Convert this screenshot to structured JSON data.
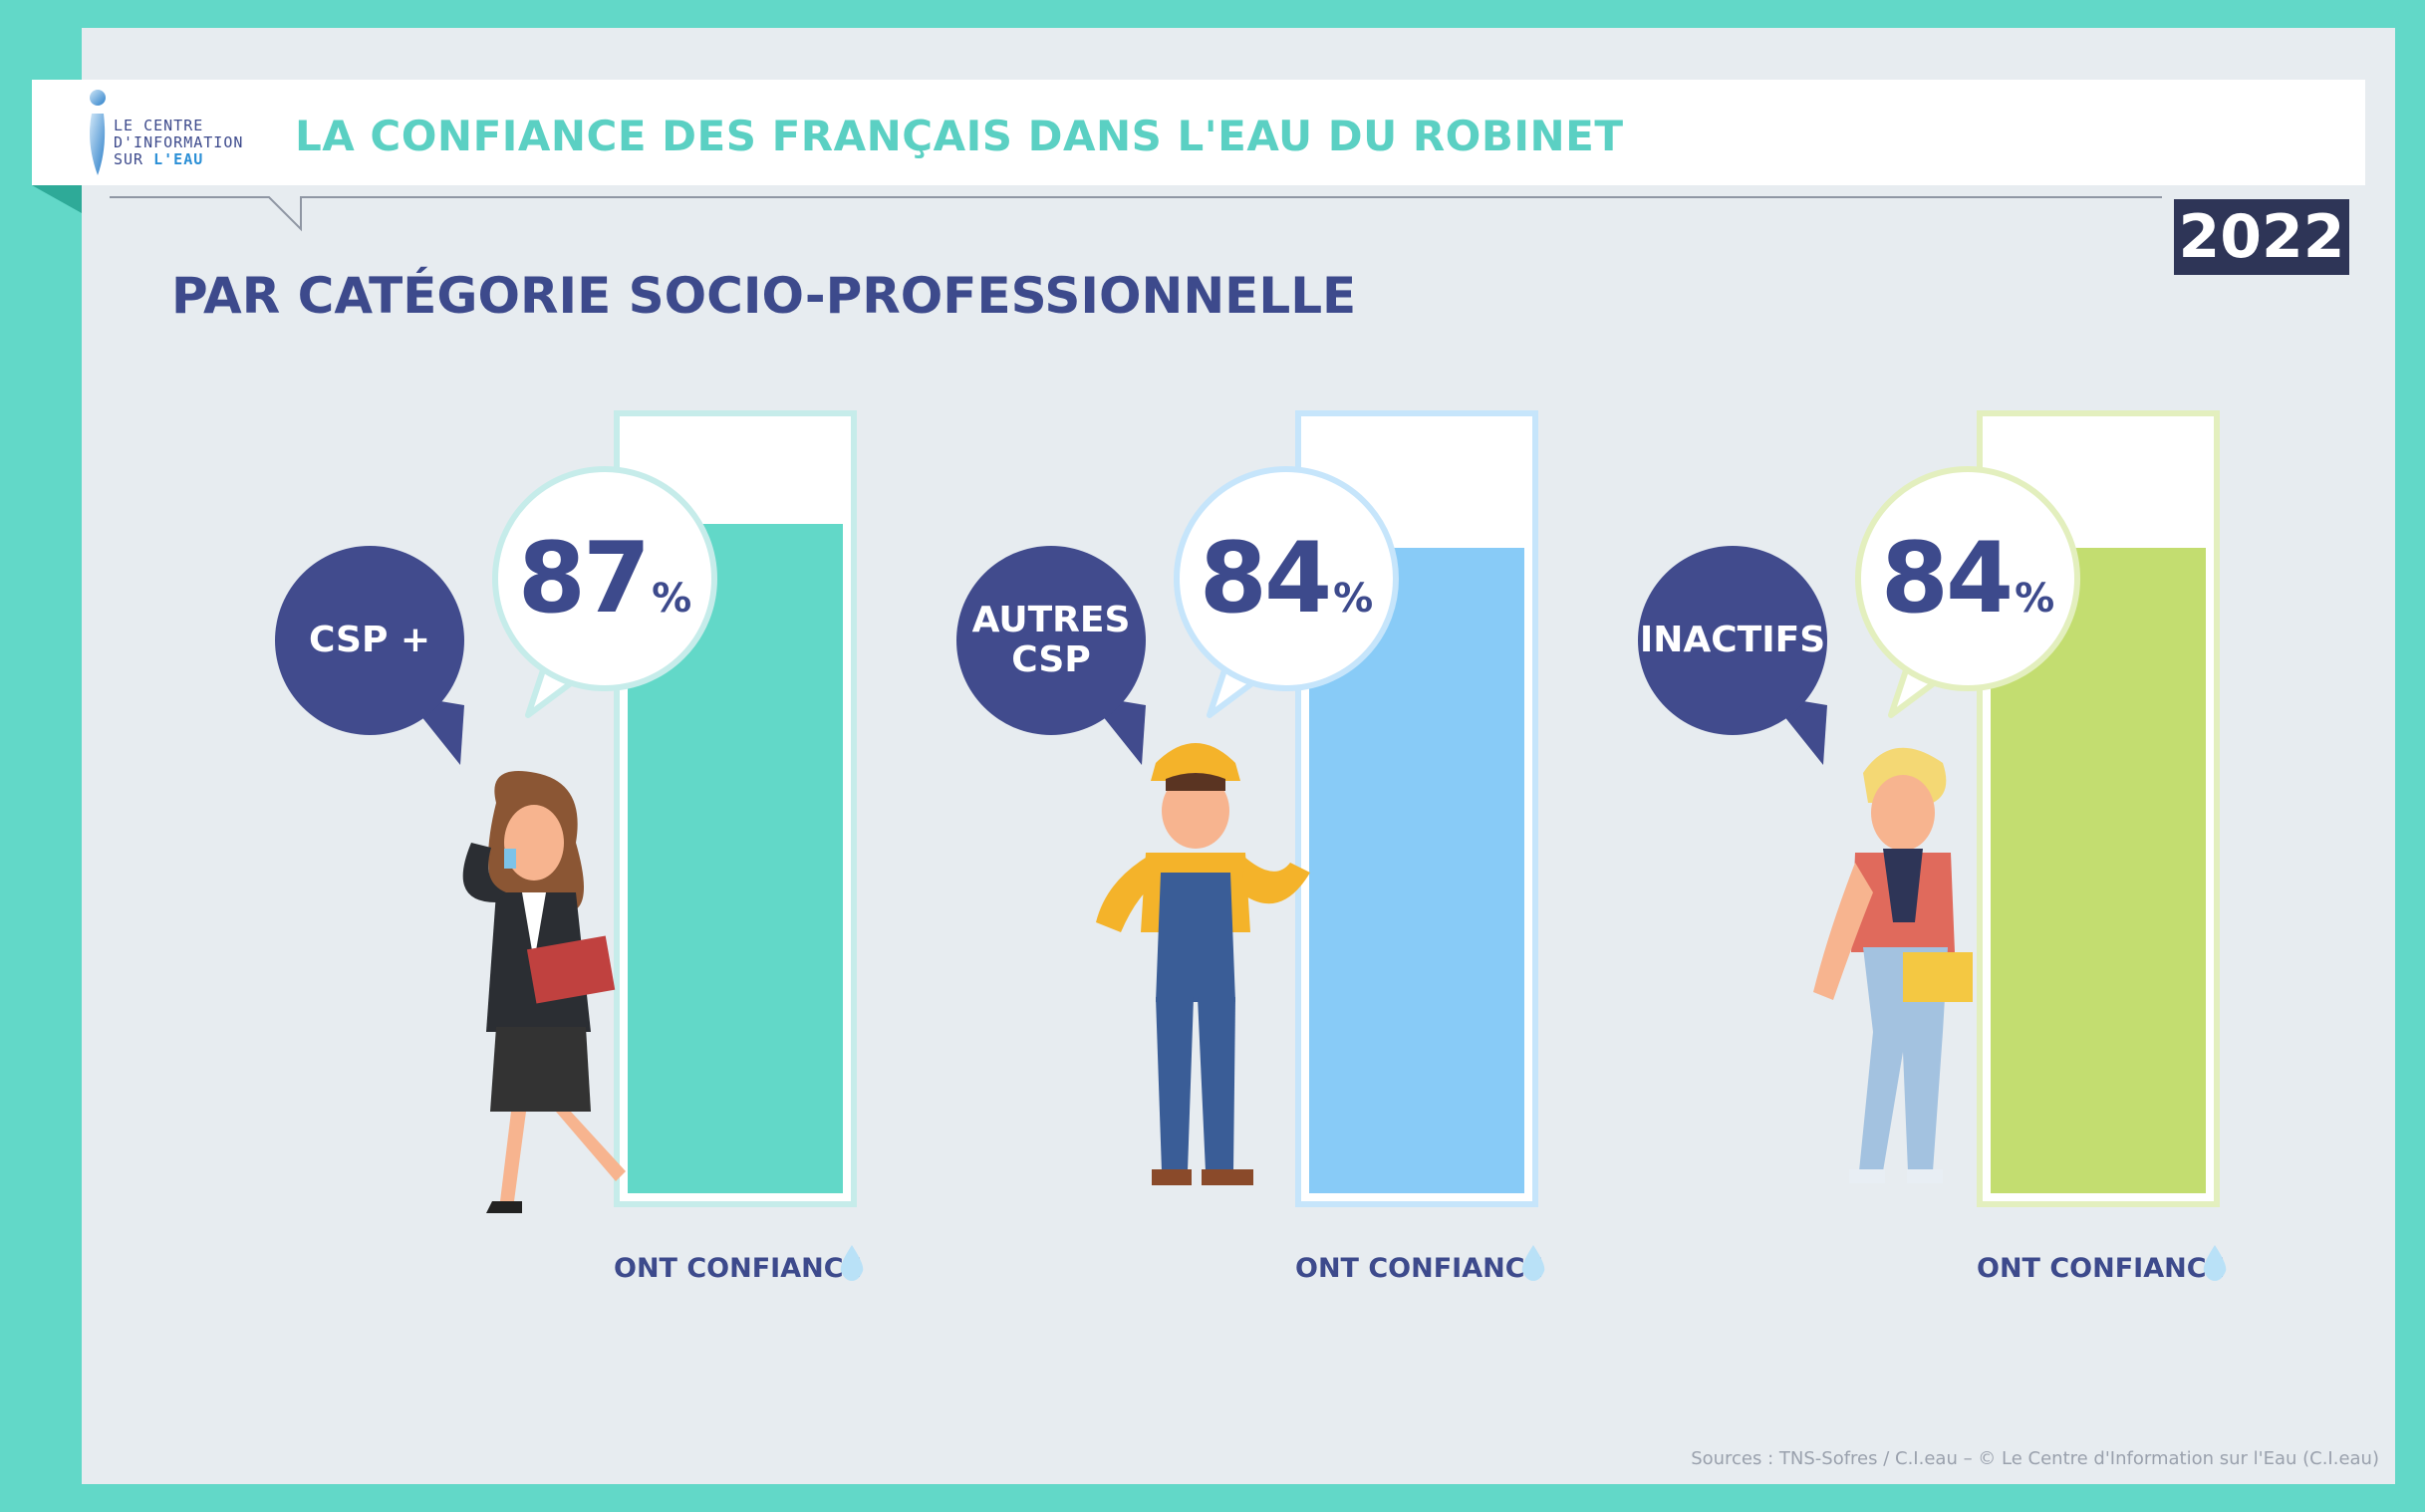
{
  "header": {
    "logo_lines": [
      "LE CENTRE",
      "D'INFORMATION",
      "SUR"
    ],
    "logo_accent": "L'EAU",
    "title": "LA CONFIANCE DES FRANÇAIS DANS L'EAU DU ROBINET",
    "year": "2022"
  },
  "subtitle": "PAR CATÉGORIE SOCIO-PROFESSIONNELLE",
  "chart_data": {
    "type": "bar",
    "title": "PAR CATÉGORIE SOCIO-PROFESSIONNELLE",
    "categories": [
      "CSP +",
      "AUTRES CSP",
      "INACTIFS"
    ],
    "values": [
      87,
      84,
      84
    ],
    "value_labels": [
      "87",
      "84",
      "84"
    ],
    "unit": "%",
    "bar_caption": "ONT CONFIANCE",
    "ylim": [
      0,
      100
    ],
    "colors": [
      "#62d8c8",
      "#88cbf7",
      "#c3dd70"
    ],
    "outline_colors": [
      "#c6ecea",
      "#c6e5fb",
      "#e3efbe"
    ]
  },
  "source": "Sources : TNS-Sofres / C.I.eau – © Le Centre d'Information sur l'Eau (C.I.eau)",
  "colors": {
    "navy": "#3d4a8c",
    "teal": "#62d8c8",
    "title_teal": "#5bd0c3",
    "year_bg": "#2e3557"
  },
  "icons": [
    "water-drop-logo-icon",
    "water-drop-icon",
    "businesswoman-illustration",
    "worker-illustration",
    "student-illustration"
  ]
}
